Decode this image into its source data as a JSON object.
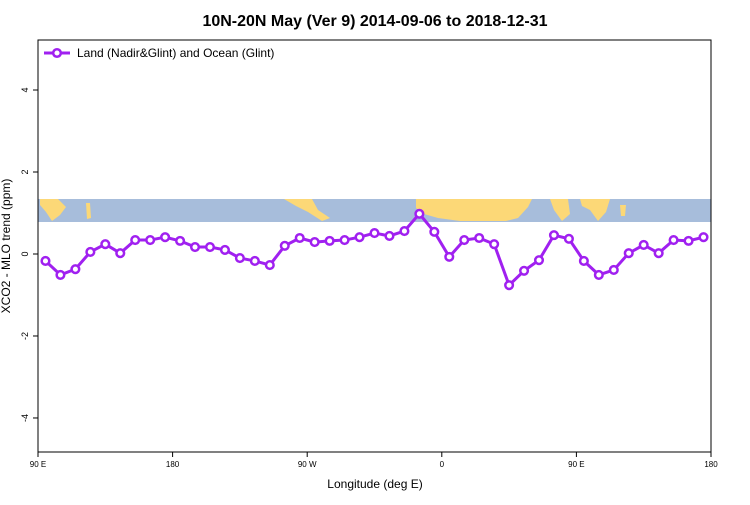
{
  "chart_data": {
    "type": "line",
    "title": "10N-20N May (Ver 9)   2014-09-06 to 2018-12-31",
    "x_label": "Longitude (deg E)",
    "y_label": "XCO2 - MLO trend (ppm)",
    "xlim": [
      90,
      540
    ],
    "ylim": [
      -4.83,
      5.22
    ],
    "xticks": [
      {
        "value": 90,
        "label": "90 E"
      },
      {
        "value": 180,
        "label": "180"
      },
      {
        "value": 270,
        "label": "90 W"
      },
      {
        "value": 360,
        "label": "0"
      },
      {
        "value": 450,
        "label": "90 E"
      },
      {
        "value": 540,
        "label": "180"
      }
    ],
    "yticks": [
      -4,
      -2,
      0,
      2,
      4
    ],
    "legend_position": "top-left",
    "series": [
      {
        "name": "Land (Nadir&Glint) and Ocean (Glint)",
        "color": "#a020f0",
        "x": [
          95,
          105,
          115,
          125,
          135,
          145,
          155,
          165,
          175,
          185,
          195,
          205,
          215,
          225,
          235,
          245,
          255,
          265,
          275,
          285,
          295,
          305,
          315,
          325,
          335,
          345,
          355,
          365,
          375,
          385,
          395,
          405,
          415,
          425,
          435,
          445,
          455,
          465,
          475,
          485,
          495,
          505,
          515,
          525,
          535
        ],
        "values": [
          -0.17,
          -0.51,
          -0.37,
          0.05,
          0.24,
          0.02,
          0.34,
          0.34,
          0.41,
          0.32,
          0.17,
          0.17,
          0.1,
          -0.1,
          -0.17,
          -0.27,
          0.2,
          0.39,
          0.29,
          0.32,
          0.34,
          0.41,
          0.51,
          0.44,
          0.56,
          0.98,
          0.54,
          -0.07,
          0.34,
          0.39,
          0.24,
          -0.76,
          -0.41,
          -0.15,
          0.46,
          0.37,
          -0.17,
          -0.51,
          -0.39,
          0.02,
          0.22,
          0.02,
          0.34,
          0.32,
          0.41
        ]
      }
    ]
  }
}
